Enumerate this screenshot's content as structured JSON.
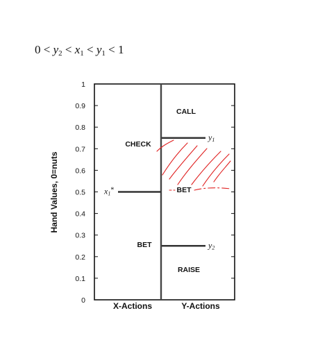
{
  "formula": {
    "prefix": "0 <",
    "v1": "y",
    "s1": "2",
    "op1": "<",
    "v2": "x",
    "s2": "1",
    "op2": "<",
    "v3": "y",
    "s3": "1",
    "suffix": "< 1"
  },
  "axis": {
    "ylabel": "Hand Values, 0=nuts",
    "ticks": [
      "0",
      "0.1",
      "0.2",
      "0.3",
      "0.4",
      "0.5",
      "0.6",
      "0.7",
      "0.8",
      "0.9",
      "1"
    ],
    "xcategories": [
      "X-Actions",
      "Y-Actions"
    ]
  },
  "regions": {
    "x_check": "CHECK",
    "x_bet": "BET",
    "y_call": "CALL",
    "y_bet": "BET",
    "y_raise": "RAISE"
  },
  "thresholds": {
    "x1": {
      "label": "x1*",
      "value": 0.5
    },
    "y1": {
      "label": "y1",
      "value": 0.75
    },
    "y2": {
      "label": "y2",
      "value": 0.25
    }
  },
  "colors": {
    "ink": "#111111",
    "annotation": "#e02020"
  }
}
